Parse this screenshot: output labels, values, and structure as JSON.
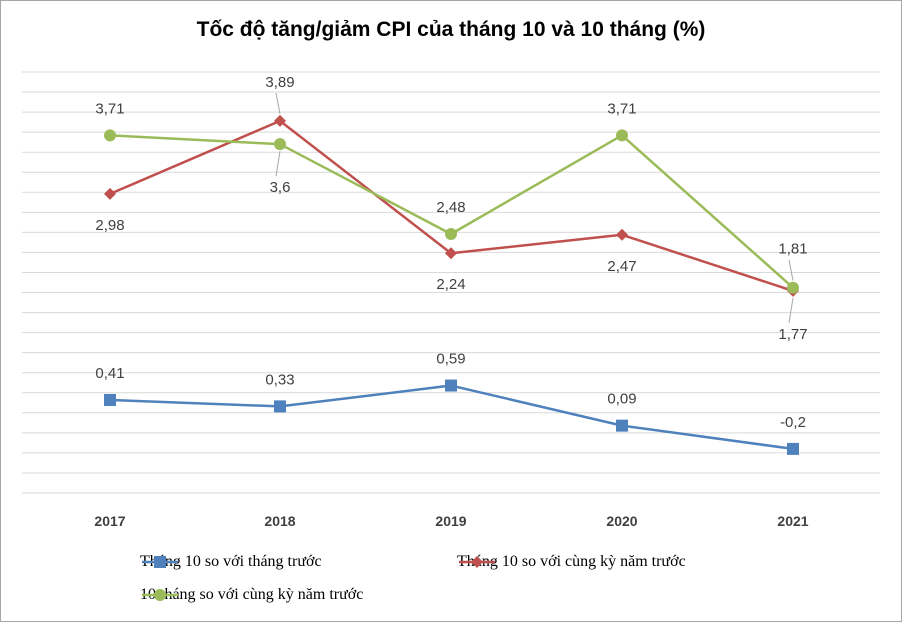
{
  "title": "Tốc độ tăng/giảm CPI của tháng 10 và 10 tháng (%)",
  "chart_data": {
    "type": "line",
    "title": "Tốc độ tăng/giảm CPI của tháng 10 và 10 tháng (%)",
    "xlabel": "",
    "ylabel": "",
    "categories": [
      "2017",
      "2018",
      "2019",
      "2020",
      "2021"
    ],
    "y_axis_visible": false,
    "ylim": [
      -0.75,
      4.5
    ],
    "grid": true,
    "legend_position": "bottom",
    "series": [
      {
        "name": "Tháng 10 so với tháng trước",
        "values": [
          0.41,
          0.33,
          0.59,
          0.09,
          -0.2
        ],
        "labels": [
          "0,41",
          "0,33",
          "0,59",
          "0,09",
          "-0,2"
        ],
        "color": "#4f81bd",
        "marker": "square"
      },
      {
        "name": "Tháng 10 so với cùng kỳ năm trước",
        "values": [
          2.98,
          3.89,
          2.24,
          2.47,
          1.77
        ],
        "labels": [
          "2,98",
          "3,89",
          "2,24",
          "2,47",
          "1,77"
        ],
        "color": "#c0504d",
        "marker": "diamond"
      },
      {
        "name": "10 tháng so với cùng kỳ năm trước",
        "values": [
          3.71,
          3.6,
          2.48,
          3.71,
          1.81
        ],
        "labels": [
          "3,71",
          "3,6",
          "2,48",
          "3,71",
          "1,81"
        ],
        "color": "#9bbb59",
        "marker": "circle"
      }
    ]
  }
}
